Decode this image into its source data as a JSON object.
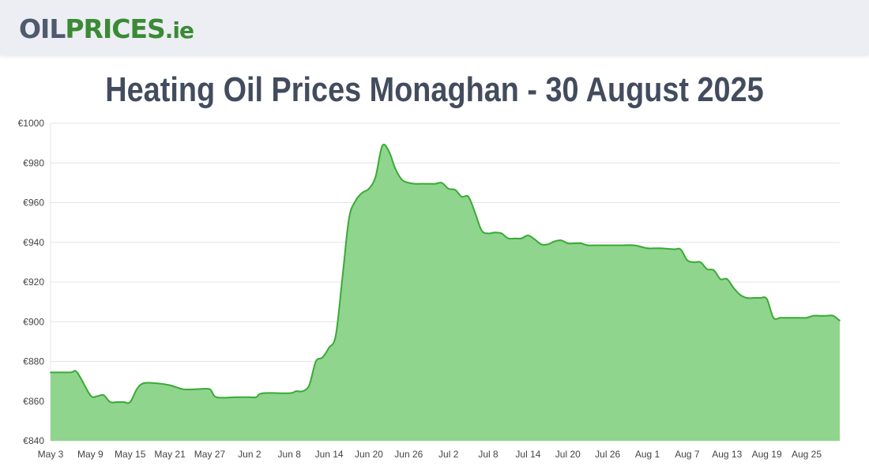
{
  "site": {
    "logo_part1": "OIL",
    "logo_part2": "PRICES",
    "logo_part3": ".ie"
  },
  "page_title": "Heating Oil Prices Monaghan - 30 August 2025",
  "colors": {
    "line": "#3aaa35",
    "fill": "#8fd58d",
    "grid": "#e4e4e4",
    "header_bg": "#eceef4",
    "title": "#434c5e"
  },
  "chart_data": {
    "type": "area",
    "title": "Heating Oil Prices Monaghan - 30 August 2025",
    "xlabel": "",
    "ylabel": "",
    "ylim": [
      840,
      1000
    ],
    "y_ticks": [
      840,
      860,
      880,
      900,
      920,
      940,
      960,
      980,
      1000
    ],
    "y_tick_labels": [
      "€840",
      "€860",
      "€880",
      "€900",
      "€920",
      "€940",
      "€960",
      "€980",
      "€1000"
    ],
    "x_tick_labels": [
      "May 3",
      "May 9",
      "May 15",
      "May 21",
      "May 27",
      "Jun 2",
      "Jun 8",
      "Jun 14",
      "Jun 20",
      "Jun 26",
      "Jul 2",
      "Jul 8",
      "Jul 14",
      "Jul 20",
      "Jul 26",
      "Aug 1",
      "Aug 7",
      "Aug 13",
      "Aug 19",
      "Aug 25"
    ],
    "x_tick_days": [
      0,
      6,
      12,
      18,
      24,
      30,
      36,
      42,
      48,
      54,
      60,
      66,
      72,
      78,
      84,
      90,
      96,
      102,
      108,
      114
    ],
    "x_range_days": [
      0,
      119
    ],
    "grid": true,
    "series": [
      {
        "name": "Heating Oil Price",
        "day": [
          0,
          3,
          4,
          6,
          7,
          8,
          9,
          10,
          11,
          12,
          13,
          14,
          16,
          18,
          20,
          22,
          24,
          25,
          28,
          30,
          31,
          32,
          36,
          37,
          38,
          39,
          40,
          41,
          42,
          43,
          44,
          45,
          46,
          47,
          48,
          49,
          50,
          51,
          52,
          53,
          54,
          55,
          56,
          57,
          58,
          59,
          60,
          61,
          62,
          63,
          64,
          65,
          66,
          67,
          68,
          69,
          70,
          71,
          72,
          73,
          74,
          75,
          76,
          77,
          78,
          79,
          80,
          81,
          82,
          84,
          86,
          88,
          90,
          91,
          92,
          94,
          95,
          96,
          97,
          98,
          99,
          100,
          101,
          102,
          103,
          104,
          105,
          106,
          107,
          108,
          109,
          110,
          111,
          112,
          113,
          114,
          115,
          116,
          117,
          118,
          119
        ],
        "price": [
          874.5,
          874.5,
          874.5,
          863,
          862.5,
          863,
          859.5,
          859.5,
          859.5,
          859.5,
          866,
          869,
          869,
          868,
          866,
          866,
          866,
          862,
          862,
          862,
          862,
          864,
          864,
          865,
          865,
          868,
          880,
          882,
          887,
          893,
          922,
          952,
          961,
          965,
          967,
          973,
          988.5,
          986,
          977,
          971.5,
          970,
          969.5,
          969.5,
          969.5,
          969.5,
          970,
          967,
          966.5,
          963,
          963,
          955,
          946,
          944.5,
          945,
          944.5,
          942,
          942,
          942,
          943.5,
          941.5,
          939,
          939,
          940.5,
          941,
          939.5,
          939.5,
          939.5,
          938.5,
          938.5,
          938.5,
          938.5,
          938.5,
          937,
          937,
          937,
          936.5,
          936.5,
          931,
          930,
          930,
          926.5,
          926,
          921.5,
          921.5,
          917,
          913.5,
          912,
          912,
          912,
          911.5,
          902,
          902,
          902,
          902,
          902,
          902,
          903,
          903,
          903,
          903,
          900.5
        ]
      }
    ]
  }
}
